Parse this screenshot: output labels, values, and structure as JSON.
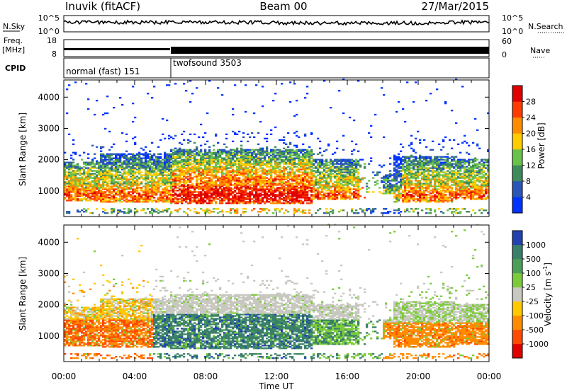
{
  "header": {
    "station": "Inuvik (fitACF)",
    "beam": "Beam 00",
    "date": "27/Mar/2015"
  },
  "panels": {
    "nsky": {
      "left_label": "N.Sky",
      "right_label": "N.Search",
      "left_ticks": [
        "10^5",
        "10^0"
      ],
      "right_ticks": [
        "10^5",
        "10^0"
      ]
    },
    "freq": {
      "left_label_1": "Freq.",
      "left_label_2": "[MHz]",
      "right_label": "Nave",
      "left_ticks": [
        "18",
        "8"
      ],
      "right_ticks": [
        "60",
        "0"
      ]
    },
    "cpid": {
      "label": "CPID",
      "modes": [
        "normal (fast) 151",
        "twofsound 3503"
      ]
    }
  },
  "chart_data": [
    {
      "type": "heatmap",
      "quantity": "power",
      "ylabel": "Slant Range [km]",
      "xlabel": "",
      "yticks": [
        "1000",
        "2000",
        "3000",
        "4000"
      ],
      "ylim": [
        180,
        4550
      ],
      "xlim_hours": [
        0,
        24
      ],
      "colorbar": {
        "label": "Power [dB]",
        "ticks": [
          "4",
          "8",
          "12",
          "16",
          "20",
          "24",
          "28"
        ],
        "range": [
          0,
          32
        ],
        "colors": [
          "#0033ff",
          "#2a56b8",
          "#3f8a5a",
          "#6bc24a",
          "#ffcc00",
          "#ff8c00",
          "#ff3b00",
          "#e00000"
        ]
      },
      "main_band_km": [
        600,
        1800
      ],
      "peak_power_db": 30
    },
    {
      "type": "heatmap",
      "quantity": "velocity",
      "ylabel": "Slant Range [km]",
      "xlabel": "Time UT",
      "yticks": [
        "1000",
        "2000",
        "3000",
        "4000"
      ],
      "xticks": [
        "00:00",
        "04:00",
        "08:00",
        "12:00",
        "16:00",
        "20:00",
        "00:00"
      ],
      "ylim": [
        180,
        4550
      ],
      "xlim_hours": [
        0,
        24
      ],
      "colorbar": {
        "label": "Velocity [m s",
        "label_sup": "-1",
        "label_end": "]",
        "ticks": [
          "1000",
          "500",
          "100",
          "25",
          "-25",
          "-100",
          "-500",
          "-1000"
        ],
        "colors": [
          "#2242b0",
          "#3a7f6a",
          "#4aa058",
          "#7ccc3a",
          "#c8c8c0",
          "#ffc800",
          "#ff8c00",
          "#ff4a00",
          "#e00000"
        ]
      },
      "main_band_km": [
        600,
        1800
      ]
    }
  ]
}
